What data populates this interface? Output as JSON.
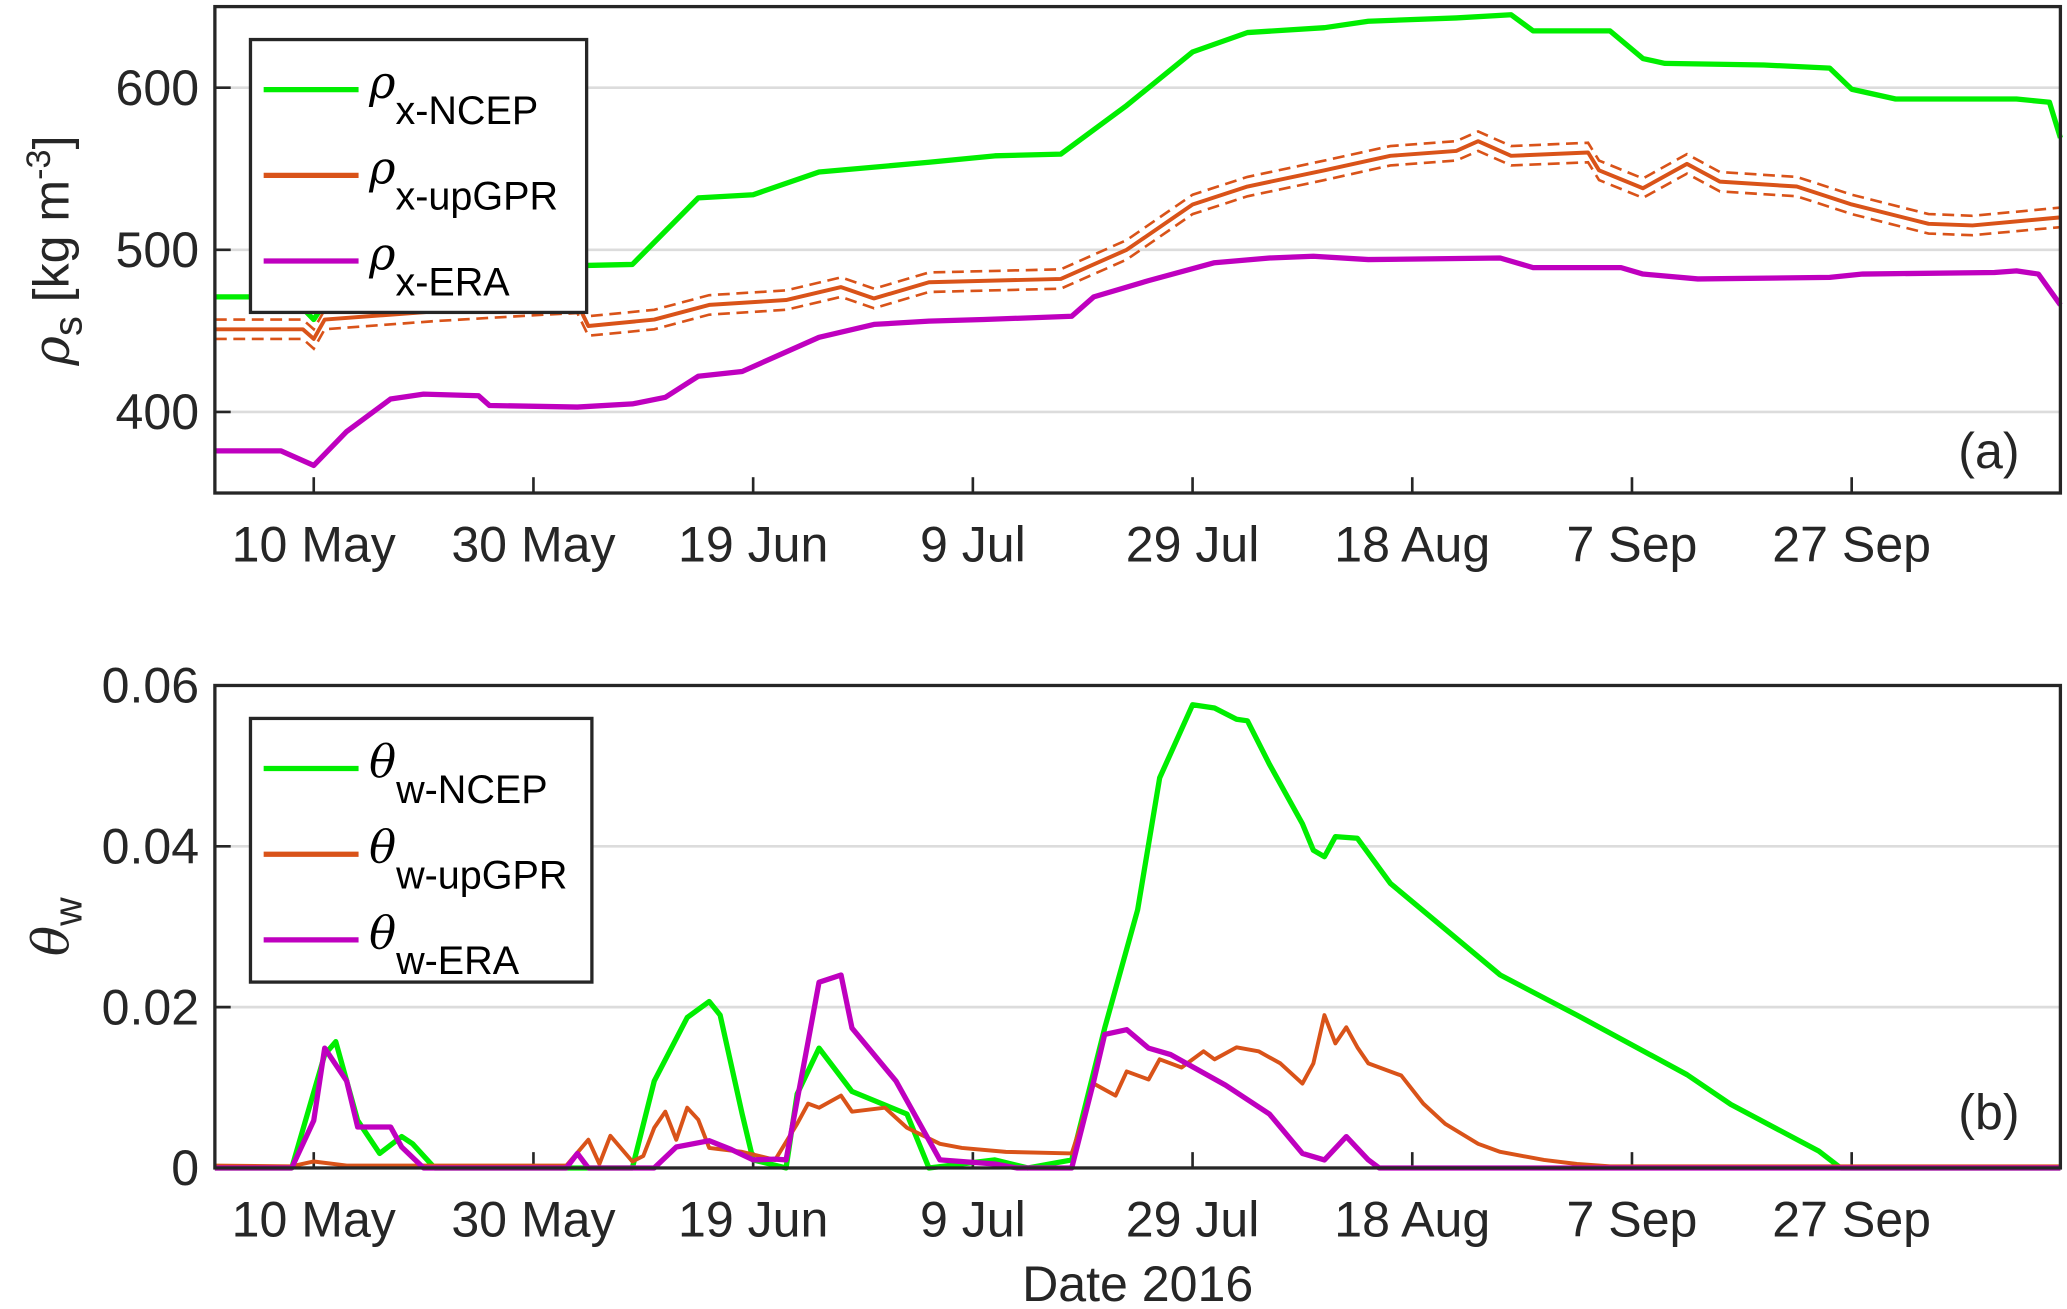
{
  "chart_data": [
    {
      "type": "line",
      "panel_label": "(a)",
      "ylabel": {
        "symbol": "ρ",
        "sub": "s",
        "text": " [kg m",
        "sup": "-3",
        "end": "]"
      },
      "xlim": [
        "2016-05-01",
        "2016-10-16"
      ],
      "ylim": [
        350,
        650
      ],
      "yticks": [
        400,
        500,
        600
      ],
      "xticks": [
        "2016-05-10",
        "2016-05-30",
        "2016-06-19",
        "2016-07-09",
        "2016-07-29",
        "2016-08-18",
        "2016-09-07",
        "2016-09-27"
      ],
      "xticklabels": [
        "10 May",
        "30 May",
        "19 Jun",
        "9 Jul",
        "29 Jul",
        "18 Aug",
        "7 Sep",
        "27 Sep"
      ],
      "grid": "y",
      "legend_placement": "top-left",
      "series": [
        {
          "name": {
            "symbol": "ρ",
            "sub": "x-NCEP"
          },
          "color": "#00ee00",
          "x": [
            "2016-05-01",
            "2016-05-08",
            "2016-05-10",
            "2016-05-12",
            "2016-05-15",
            "2016-05-23",
            "2016-05-26",
            "2016-06-08",
            "2016-06-14",
            "2016-06-19",
            "2016-06-25",
            "2016-07-05",
            "2016-07-11",
            "2016-07-17",
            "2016-07-23",
            "2016-07-29",
            "2016-08-03",
            "2016-08-10",
            "2016-08-14",
            "2016-08-22",
            "2016-08-27",
            "2016-08-29",
            "2016-09-05",
            "2016-09-08",
            "2016-09-10",
            "2016-09-19",
            "2016-09-25",
            "2016-09-27",
            "2016-10-01",
            "2016-10-12",
            "2016-10-15",
            "2016-10-16"
          ],
          "y": [
            471,
            471,
            457,
            478,
            494,
            494,
            489,
            491,
            532,
            534,
            548,
            554,
            558,
            559,
            589,
            622,
            634,
            637,
            641,
            643,
            645,
            635,
            635,
            618,
            615,
            614,
            612,
            599,
            593,
            593,
            591,
            569
          ]
        },
        {
          "name": {
            "symbol": "ρ",
            "sub": "x-upGPR"
          },
          "color": "#d95319",
          "uncertainty": 6,
          "x": [
            "2016-05-01",
            "2016-05-09",
            "2016-05-10",
            "2016-05-11",
            "2016-05-21",
            "2016-05-31",
            "2016-06-03",
            "2016-06-04",
            "2016-06-10",
            "2016-06-15",
            "2016-06-22",
            "2016-06-27",
            "2016-06-30",
            "2016-07-05",
            "2016-07-17",
            "2016-07-23",
            "2016-07-29",
            "2016-08-03",
            "2016-08-10",
            "2016-08-16",
            "2016-08-22",
            "2016-08-24",
            "2016-08-27",
            "2016-09-03",
            "2016-09-04",
            "2016-09-08",
            "2016-09-12",
            "2016-09-15",
            "2016-09-22",
            "2016-09-27",
            "2016-10-04",
            "2016-10-08",
            "2016-10-16"
          ],
          "y": [
            451,
            451,
            445,
            457,
            462,
            466,
            467,
            453,
            457,
            466,
            469,
            477,
            470,
            480,
            482,
            500,
            528,
            539,
            549,
            558,
            561,
            567,
            558,
            560,
            549,
            538,
            553,
            542,
            539,
            528,
            516,
            515,
            520
          ]
        },
        {
          "name": {
            "symbol": "ρ",
            "sub": "x-ERA"
          },
          "color": "#bf00bf",
          "x": [
            "2016-05-01",
            "2016-05-07",
            "2016-05-10",
            "2016-05-13",
            "2016-05-17",
            "2016-05-20",
            "2016-05-25",
            "2016-05-26",
            "2016-06-03",
            "2016-06-08",
            "2016-06-11",
            "2016-06-14",
            "2016-06-18",
            "2016-06-21",
            "2016-06-25",
            "2016-06-30",
            "2016-07-05",
            "2016-07-10",
            "2016-07-18",
            "2016-07-20",
            "2016-07-25",
            "2016-07-31",
            "2016-08-05",
            "2016-08-09",
            "2016-08-14",
            "2016-08-26",
            "2016-08-29",
            "2016-09-06",
            "2016-09-08",
            "2016-09-13",
            "2016-09-25",
            "2016-09-28",
            "2016-10-10",
            "2016-10-12",
            "2016-10-14",
            "2016-10-16"
          ],
          "y": [
            376,
            376,
            367,
            388,
            408,
            411,
            410,
            404,
            403,
            405,
            409,
            422,
            425,
            434,
            446,
            454,
            456,
            457,
            459,
            471,
            481,
            492,
            495,
            496,
            494,
            495,
            489,
            489,
            485,
            482,
            483,
            485,
            486,
            487,
            485,
            466
          ]
        }
      ]
    },
    {
      "type": "line",
      "panel_label": "(b)",
      "ylabel": {
        "symbol": "θ",
        "sub": "w"
      },
      "xlabel": "Date 2016",
      "xlim": [
        "2016-05-01",
        "2016-10-16"
      ],
      "ylim": [
        0,
        0.06
      ],
      "yticks": [
        0,
        0.02,
        0.04,
        0.06
      ],
      "yticklabels": [
        "0",
        "0.02",
        "0.04",
        "0.06"
      ],
      "xticks": [
        "2016-05-10",
        "2016-05-30",
        "2016-06-19",
        "2016-07-09",
        "2016-07-29",
        "2016-08-18",
        "2016-09-07",
        "2016-09-27"
      ],
      "xticklabels": [
        "10 May",
        "30 May",
        "19 Jun",
        "9 Jul",
        "29 Jul",
        "18 Aug",
        "7 Sep",
        "27 Sep"
      ],
      "grid": "y",
      "legend_placement": "top-left",
      "series": [
        {
          "name": {
            "symbol": "θ",
            "sub": "w-NCEP"
          },
          "color": "#00ee00",
          "x": [
            "2016-05-01",
            "2016-05-08",
            "2016-05-11",
            "2016-05-12",
            "2016-05-14",
            "2016-05-16",
            "2016-05-18",
            "2016-05-19",
            "2016-05-21",
            "2016-06-08",
            "2016-06-10",
            "2016-06-13",
            "2016-06-15",
            "2016-06-16",
            "2016-06-18",
            "2016-06-19",
            "2016-06-22",
            "2016-06-23",
            "2016-06-25",
            "2016-06-28",
            "2016-07-03",
            "2016-07-05",
            "2016-07-11",
            "2016-07-14",
            "2016-07-18",
            "2016-07-21",
            "2016-07-24",
            "2016-07-26",
            "2016-07-29",
            "2016-07-31",
            "2016-08-02",
            "2016-08-03",
            "2016-08-05",
            "2016-08-08",
            "2016-08-09",
            "2016-08-10",
            "2016-08-11",
            "2016-08-13",
            "2016-08-16",
            "2016-08-21",
            "2016-08-26",
            "2016-09-02",
            "2016-09-12",
            "2016-09-16",
            "2016-09-24",
            "2016-09-26",
            "2016-10-16"
          ],
          "y": [
            0,
            0,
            0.0141,
            0.0157,
            0.0059,
            0.0018,
            0.0039,
            0.003,
            0,
            0,
            0.0108,
            0.0187,
            0.0207,
            0.019,
            0.0067,
            0.001,
            0,
            0.0092,
            0.0149,
            0.0095,
            0.0067,
            0,
            0.001,
            0,
            0.001,
            0.0174,
            0.0321,
            0.0485,
            0.0576,
            0.0572,
            0.0558,
            0.0556,
            0.0502,
            0.0428,
            0.0395,
            0.0387,
            0.0412,
            0.041,
            0.0354,
            0.0297,
            0.024,
            0.019,
            0.0116,
            0.0079,
            0.0021,
            0,
            0
          ]
        },
        {
          "name": {
            "symbol": "θ",
            "sub": "w-upGPR"
          },
          "color": "#d95319",
          "x": [
            "2016-05-01",
            "2016-05-08",
            "2016-05-10",
            "2016-05-13",
            "2016-06-02",
            "2016-06-04",
            "2016-06-05",
            "2016-06-06",
            "2016-06-08",
            "2016-06-09",
            "2016-06-10",
            "2016-06-11",
            "2016-06-12",
            "2016-06-13",
            "2016-06-14",
            "2016-06-15",
            "2016-06-18",
            "2016-06-21",
            "2016-06-23",
            "2016-06-24",
            "2016-06-25",
            "2016-06-27",
            "2016-06-28",
            "2016-07-01",
            "2016-07-03",
            "2016-07-06",
            "2016-07-08",
            "2016-07-12",
            "2016-07-18",
            "2016-07-19",
            "2016-07-20",
            "2016-07-22",
            "2016-07-23",
            "2016-07-25",
            "2016-07-26",
            "2016-07-28",
            "2016-07-30",
            "2016-07-31",
            "2016-08-02",
            "2016-08-04",
            "2016-08-06",
            "2016-08-08",
            "2016-08-09",
            "2016-08-10",
            "2016-08-11",
            "2016-08-12",
            "2016-08-13",
            "2016-08-14",
            "2016-08-17",
            "2016-08-19",
            "2016-08-21",
            "2016-08-24",
            "2016-08-26",
            "2016-08-28",
            "2016-08-30",
            "2016-09-02",
            "2016-09-05",
            "2016-10-16"
          ],
          "y": [
            0.0003,
            0.0002,
            0.0008,
            0.0003,
            0.0003,
            0.0035,
            0.0005,
            0.004,
            0.0008,
            0.0015,
            0.005,
            0.007,
            0.0035,
            0.0075,
            0.006,
            0.0025,
            0.002,
            0.001,
            0.0055,
            0.008,
            0.0075,
            0.009,
            0.007,
            0.0075,
            0.005,
            0.003,
            0.0025,
            0.002,
            0.0018,
            0.006,
            0.0105,
            0.009,
            0.012,
            0.011,
            0.0135,
            0.0125,
            0.0145,
            0.0135,
            0.015,
            0.0145,
            0.013,
            0.0105,
            0.013,
            0.019,
            0.0155,
            0.0175,
            0.015,
            0.013,
            0.0115,
            0.008,
            0.0055,
            0.003,
            0.002,
            0.0015,
            0.001,
            0.0005,
            0.0002,
            0.0002
          ]
        },
        {
          "name": {
            "symbol": "θ",
            "sub": "w-ERA"
          },
          "color": "#bf00bf",
          "x": [
            "2016-05-01",
            "2016-05-08",
            "2016-05-10",
            "2016-05-11",
            "2016-05-13",
            "2016-05-14",
            "2016-05-17",
            "2016-05-18",
            "2016-05-20",
            "2016-06-02",
            "2016-06-03",
            "2016-06-04",
            "2016-06-10",
            "2016-06-12",
            "2016-06-15",
            "2016-06-17",
            "2016-06-19",
            "2016-06-21",
            "2016-06-22",
            "2016-06-24",
            "2016-06-25",
            "2016-06-27",
            "2016-06-28",
            "2016-07-02",
            "2016-07-06",
            "2016-07-11",
            "2016-07-13",
            "2016-07-18",
            "2016-07-20",
            "2016-07-21",
            "2016-07-23",
            "2016-07-25",
            "2016-07-27",
            "2016-08-01",
            "2016-08-05",
            "2016-08-08",
            "2016-08-10",
            "2016-08-12",
            "2016-08-14",
            "2016-08-15",
            "2016-10-16"
          ],
          "y": [
            0,
            0,
            0.0059,
            0.0149,
            0.0108,
            0.0051,
            0.0051,
            0.0026,
            0,
            0,
            0.0018,
            0,
            0,
            0.0026,
            0.0034,
            0.0023,
            0.001,
            0.0011,
            0.001,
            0.0157,
            0.0231,
            0.024,
            0.0174,
            0.0108,
            0.001,
            0.0005,
            0,
            0,
            0.0108,
            0.0166,
            0.0172,
            0.0149,
            0.0141,
            0.0103,
            0.0067,
            0.0018,
            0.001,
            0.0039,
            0.001,
            0,
            0
          ]
        }
      ]
    }
  ]
}
